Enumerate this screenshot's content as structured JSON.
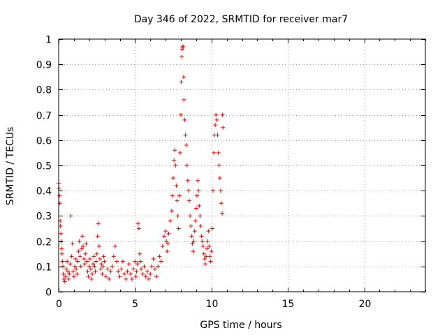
{
  "chart_data": {
    "type": "scatter",
    "title": "Day 346 of 2022, SRMTID for receiver mar7",
    "xlabel": "GPS time / hours",
    "ylabel": "SRMTID / TECUs",
    "xlim": [
      0,
      24
    ],
    "ylim": [
      0,
      1
    ],
    "x_ticks": [
      0,
      5,
      10,
      15,
      20
    ],
    "x_tick_labels": [
      "0",
      "5",
      "10",
      "15",
      "20"
    ],
    "y_ticks": [
      0,
      0.1,
      0.2,
      0.3,
      0.4,
      0.5,
      0.6,
      0.7,
      0.8,
      0.9,
      1
    ],
    "y_tick_labels": [
      "0",
      "0.1",
      "0.2",
      "0.3",
      "0.4",
      "0.5",
      "0.6",
      "0.7",
      "0.8",
      "0.9",
      "1"
    ],
    "grid": true,
    "marker": "+",
    "color": "#ff0000",
    "series": [
      {
        "name": "SRMTID",
        "points": [
          [
            0.0,
            0.43
          ],
          [
            0.02,
            0.41
          ],
          [
            0.05,
            0.38
          ],
          [
            0.08,
            0.35
          ],
          [
            0.1,
            0.28
          ],
          [
            0.12,
            0.26
          ],
          [
            0.15,
            0.23
          ],
          [
            0.18,
            0.2
          ],
          [
            0.2,
            0.17
          ],
          [
            0.22,
            0.15
          ],
          [
            0.25,
            0.12
          ],
          [
            0.28,
            0.1
          ],
          [
            0.3,
            0.07
          ],
          [
            0.35,
            0.05
          ],
          [
            0.4,
            0.04
          ],
          [
            0.45,
            0.06
          ],
          [
            0.5,
            0.09
          ],
          [
            0.55,
            0.12
          ],
          [
            0.6,
            0.08
          ],
          [
            0.65,
            0.05
          ],
          [
            0.7,
            0.07
          ],
          [
            0.75,
            0.11
          ],
          [
            0.8,
            0.3
          ],
          [
            0.85,
            0.14
          ],
          [
            0.9,
            0.19
          ],
          [
            0.95,
            0.08
          ],
          [
            1.0,
            0.06
          ],
          [
            1.05,
            0.1
          ],
          [
            1.1,
            0.13
          ],
          [
            1.15,
            0.09
          ],
          [
            1.2,
            0.07
          ],
          [
            1.25,
            0.12
          ],
          [
            1.3,
            0.16
          ],
          [
            1.35,
            0.2
          ],
          [
            1.4,
            0.14
          ],
          [
            1.45,
            0.1
          ],
          [
            1.5,
            0.17
          ],
          [
            1.55,
            0.22
          ],
          [
            1.6,
            0.18
          ],
          [
            1.65,
            0.13
          ],
          [
            1.7,
            0.11
          ],
          [
            1.75,
            0.15
          ],
          [
            1.8,
            0.19
          ],
          [
            1.85,
            0.12
          ],
          [
            1.9,
            0.08
          ],
          [
            1.95,
            0.06
          ],
          [
            2.0,
            0.1
          ],
          [
            2.05,
            0.13
          ],
          [
            2.1,
            0.09
          ],
          [
            2.15,
            0.05
          ],
          [
            2.2,
            0.07
          ],
          [
            2.25,
            0.11
          ],
          [
            2.3,
            0.14
          ],
          [
            2.35,
            0.1
          ],
          [
            2.4,
            0.08
          ],
          [
            2.45,
            0.12
          ],
          [
            2.5,
            0.15
          ],
          [
            2.55,
            0.22
          ],
          [
            2.6,
            0.27
          ],
          [
            2.65,
            0.18
          ],
          [
            2.7,
            0.13
          ],
          [
            2.75,
            0.09
          ],
          [
            2.8,
            0.11
          ],
          [
            2.85,
            0.07
          ],
          [
            2.9,
            0.1
          ],
          [
            2.95,
            0.14
          ],
          [
            3.0,
            0.12
          ],
          [
            3.1,
            0.06
          ],
          [
            3.2,
            0.09
          ],
          [
            3.3,
            0.05
          ],
          [
            3.4,
            0.08
          ],
          [
            3.5,
            0.1
          ],
          [
            3.6,
            0.14
          ],
          [
            3.7,
            0.18
          ],
          [
            3.8,
            0.12
          ],
          [
            3.9,
            0.08
          ],
          [
            4.0,
            0.06
          ],
          [
            4.1,
            0.09
          ],
          [
            4.2,
            0.12
          ],
          [
            4.3,
            0.07
          ],
          [
            4.4,
            0.05
          ],
          [
            4.5,
            0.08
          ],
          [
            4.6,
            0.11
          ],
          [
            4.7,
            0.07
          ],
          [
            4.8,
            0.05
          ],
          [
            4.9,
            0.09
          ],
          [
            5.0,
            0.12
          ],
          [
            5.05,
            0.06
          ],
          [
            5.1,
            0.08
          ],
          [
            5.15,
            0.11
          ],
          [
            5.2,
            0.27
          ],
          [
            5.25,
            0.25
          ],
          [
            5.3,
            0.15
          ],
          [
            5.35,
            0.12
          ],
          [
            5.4,
            0.09
          ],
          [
            5.5,
            0.07
          ],
          [
            5.6,
            0.1
          ],
          [
            5.7,
            0.06
          ],
          [
            5.8,
            0.08
          ],
          [
            5.9,
            0.05
          ],
          [
            6.0,
            0.07
          ],
          [
            6.1,
            0.1
          ],
          [
            6.2,
            0.13
          ],
          [
            6.3,
            0.09
          ],
          [
            6.4,
            0.06
          ],
          [
            6.5,
            0.1
          ],
          [
            6.6,
            0.14
          ],
          [
            6.7,
            0.12
          ],
          [
            6.8,
            0.18
          ],
          [
            6.9,
            0.22
          ],
          [
            7.0,
            0.24
          ],
          [
            7.05,
            0.2
          ],
          [
            7.1,
            0.16
          ],
          [
            7.15,
            0.19
          ],
          [
            7.2,
            0.23
          ],
          [
            7.3,
            0.28
          ],
          [
            7.4,
            0.32
          ],
          [
            7.45,
            0.38
          ],
          [
            7.5,
            0.45
          ],
          [
            7.55,
            0.52
          ],
          [
            7.6,
            0.56
          ],
          [
            7.65,
            0.5
          ],
          [
            7.7,
            0.42
          ],
          [
            7.75,
            0.36
          ],
          [
            7.8,
            0.3
          ],
          [
            7.85,
            0.25
          ],
          [
            7.9,
            0.38
          ],
          [
            7.95,
            0.55
          ],
          [
            8.0,
            0.7
          ],
          [
            8.02,
            0.83
          ],
          [
            8.05,
            0.93
          ],
          [
            8.08,
            0.96
          ],
          [
            8.1,
            0.97
          ],
          [
            8.15,
            0.97
          ],
          [
            8.18,
            0.85
          ],
          [
            8.2,
            0.76
          ],
          [
            8.25,
            0.68
          ],
          [
            8.3,
            0.62
          ],
          [
            8.35,
            0.58
          ],
          [
            8.4,
            0.5
          ],
          [
            8.45,
            0.44
          ],
          [
            8.5,
            0.4
          ],
          [
            8.55,
            0.36
          ],
          [
            8.6,
            0.3
          ],
          [
            8.65,
            0.26
          ],
          [
            8.7,
            0.22
          ],
          [
            8.75,
            0.19
          ],
          [
            8.8,
            0.16
          ],
          [
            8.85,
            0.2
          ],
          [
            8.9,
            0.24
          ],
          [
            8.95,
            0.28
          ],
          [
            9.0,
            0.33
          ],
          [
            9.05,
            0.38
          ],
          [
            9.1,
            0.44
          ],
          [
            9.15,
            0.4
          ],
          [
            9.2,
            0.34
          ],
          [
            9.25,
            0.3
          ],
          [
            9.3,
            0.26
          ],
          [
            9.35,
            0.22
          ],
          [
            9.4,
            0.2
          ],
          [
            9.45,
            0.18
          ],
          [
            9.5,
            0.15
          ],
          [
            9.55,
            0.13
          ],
          [
            9.6,
            0.11
          ],
          [
            9.65,
            0.14
          ],
          [
            9.7,
            0.17
          ],
          [
            9.75,
            0.2
          ],
          [
            9.8,
            0.24
          ],
          [
            9.85,
            0.18
          ],
          [
            9.9,
            0.14
          ],
          [
            9.95,
            0.12
          ],
          [
            10.0,
            0.16
          ],
          [
            10.05,
            0.25
          ],
          [
            10.1,
            0.4
          ],
          [
            10.15,
            0.55
          ],
          [
            10.2,
            0.62
          ],
          [
            10.25,
            0.66
          ],
          [
            10.3,
            0.7
          ],
          [
            10.35,
            0.68
          ],
          [
            10.4,
            0.62
          ],
          [
            10.45,
            0.55
          ],
          [
            10.5,
            0.5
          ],
          [
            10.55,
            0.45
          ],
          [
            10.6,
            0.4
          ],
          [
            10.65,
            0.35
          ],
          [
            10.7,
            0.31
          ],
          [
            10.72,
            0.7
          ],
          [
            10.75,
            0.65
          ]
        ]
      }
    ]
  }
}
